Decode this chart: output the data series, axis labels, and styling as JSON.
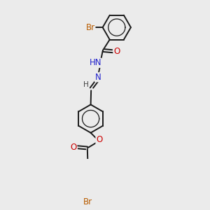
{
  "bg_color": "#ebebeb",
  "bond_color": "#1a1a1a",
  "bond_width": 1.4,
  "atom_colors": {
    "Br": "#b85c00",
    "O": "#cc0000",
    "N": "#2222cc",
    "H": "#444444",
    "C": "#1a1a1a"
  },
  "font_size": 8.5,
  "fig_width": 3.0,
  "fig_height": 3.0,
  "dpi": 100,
  "xlim": [
    -1.5,
    2.5
  ],
  "ylim": [
    -4.5,
    3.5
  ]
}
